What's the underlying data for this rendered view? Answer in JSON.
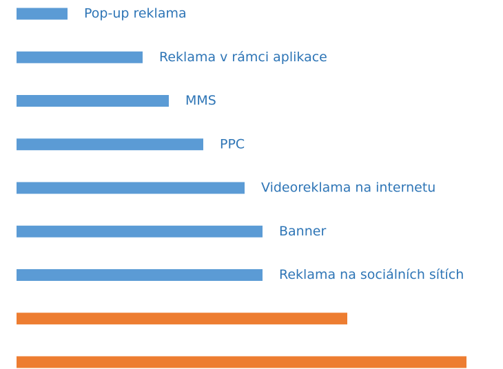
{
  "chart_data": {
    "type": "bar",
    "orientation": "horizontal",
    "categories": [
      "Pop-up reklama",
      "Reklama v rámci aplikace",
      "MMS",
      "PPC",
      "Videoreklama na internetu",
      "Banner",
      "Reklama na sociálních sítích",
      null,
      null
    ],
    "values": [
      74,
      183,
      221,
      271,
      331,
      357,
      357,
      480,
      653
    ],
    "colors": [
      "#5b9bd5",
      "#5b9bd5",
      "#5b9bd5",
      "#5b9bd5",
      "#5b9bd5",
      "#5b9bd5",
      "#5b9bd5",
      "#ed7d31",
      "#ed7d31"
    ],
    "label_color": "#2e75b6"
  }
}
